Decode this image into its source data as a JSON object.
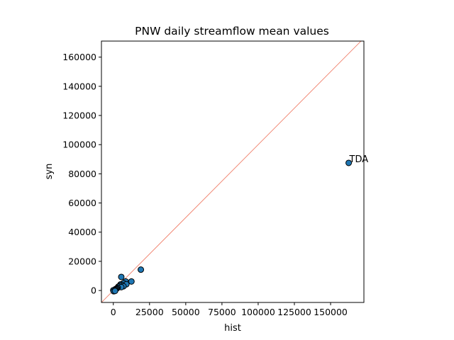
{
  "chart_data": {
    "type": "scatter",
    "title": "PNW daily streamflow mean values",
    "xlabel": "hist",
    "ylabel": "syn",
    "xlim": [
      -8200,
      173000
    ],
    "ylim": [
      -8200,
      171000
    ],
    "xticks": [
      0,
      25000,
      50000,
      75000,
      100000,
      125000,
      150000
    ],
    "yticks": [
      0,
      20000,
      40000,
      60000,
      80000,
      100000,
      120000,
      140000,
      160000
    ],
    "grid": false,
    "reference_line": "y = x",
    "colors": {
      "marker_fill": "#1f77b4",
      "marker_edge": "#000000",
      "reference_line": "#f07f6a"
    },
    "points": [
      {
        "x": 162500,
        "y": 87500,
        "label": "TDA"
      },
      {
        "x": 19000,
        "y": 14300
      },
      {
        "x": 5500,
        "y": 9300
      },
      {
        "x": 12500,
        "y": 6200
      },
      {
        "x": 8500,
        "y": 6200
      },
      {
        "x": 7000,
        "y": 5000
      },
      {
        "x": 9000,
        "y": 4300
      },
      {
        "x": 5000,
        "y": 4200
      },
      {
        "x": 6000,
        "y": 3700
      },
      {
        "x": 4500,
        "y": 3300
      },
      {
        "x": 7000,
        "y": 2900
      },
      {
        "x": 3500,
        "y": 2700
      },
      {
        "x": 5500,
        "y": 2300
      },
      {
        "x": 3000,
        "y": 2000
      },
      {
        "x": 2500,
        "y": 1500
      },
      {
        "x": 2000,
        "y": 1200
      },
      {
        "x": 1500,
        "y": 900
      },
      {
        "x": 1000,
        "y": 600
      },
      {
        "x": 500,
        "y": 300
      },
      {
        "x": 0,
        "y": 200
      },
      {
        "x": 300,
        "y": -500
      },
      {
        "x": 1200,
        "y": -300
      }
    ]
  }
}
